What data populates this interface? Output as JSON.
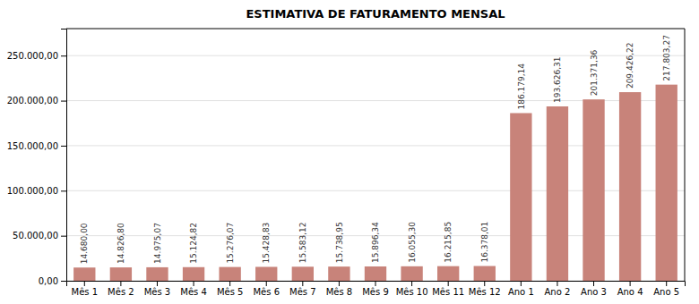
{
  "chart_data": {
    "type": "bar",
    "title": "ESTIMATIVA DE FATURAMENTO MENSAL",
    "categories": [
      "Mês 1",
      "Mês 2",
      "Mês 3",
      "Mês 4",
      "Mês 5",
      "Mês 6",
      "Mês 7",
      "Mês 8",
      "Mês 9",
      "Mês 10",
      "Mês 11",
      "Mês 12",
      "Ano 1",
      "Ano 2",
      "Ano 3",
      "Ano 4",
      "Ano 5"
    ],
    "values": [
      14680.0,
      14826.8,
      14975.07,
      15124.82,
      15276.07,
      15428.83,
      15583.12,
      15738.95,
      15896.34,
      16055.3,
      16215.85,
      16378.01,
      186179.14,
      193626.31,
      201371.36,
      209426.22,
      217803.27
    ],
    "value_labels": [
      "14.680,00",
      "14.826,80",
      "14.975,07",
      "15.124,82",
      "15.276,07",
      "15.428,83",
      "15.583,12",
      "15.738,95",
      "15.896,34",
      "16.055,30",
      "16.215,85",
      "16.378,01",
      "186.179,14",
      "193.626,31",
      "201.371,36",
      "209.426,22",
      "217.803,27"
    ],
    "color": "#c8837a",
    "ylim": [
      0,
      280000
    ],
    "yticks": [
      {
        "value": 0,
        "label": "0,00"
      },
      {
        "value": 50000,
        "label": "50.000,00"
      },
      {
        "value": 100000,
        "label": "100.000,00"
      },
      {
        "value": 150000,
        "label": "150.000,00"
      },
      {
        "value": 200000,
        "label": "200.000,00"
      },
      {
        "value": 250000,
        "label": "250.000,00"
      }
    ],
    "grid": true,
    "data_labels": true
  }
}
